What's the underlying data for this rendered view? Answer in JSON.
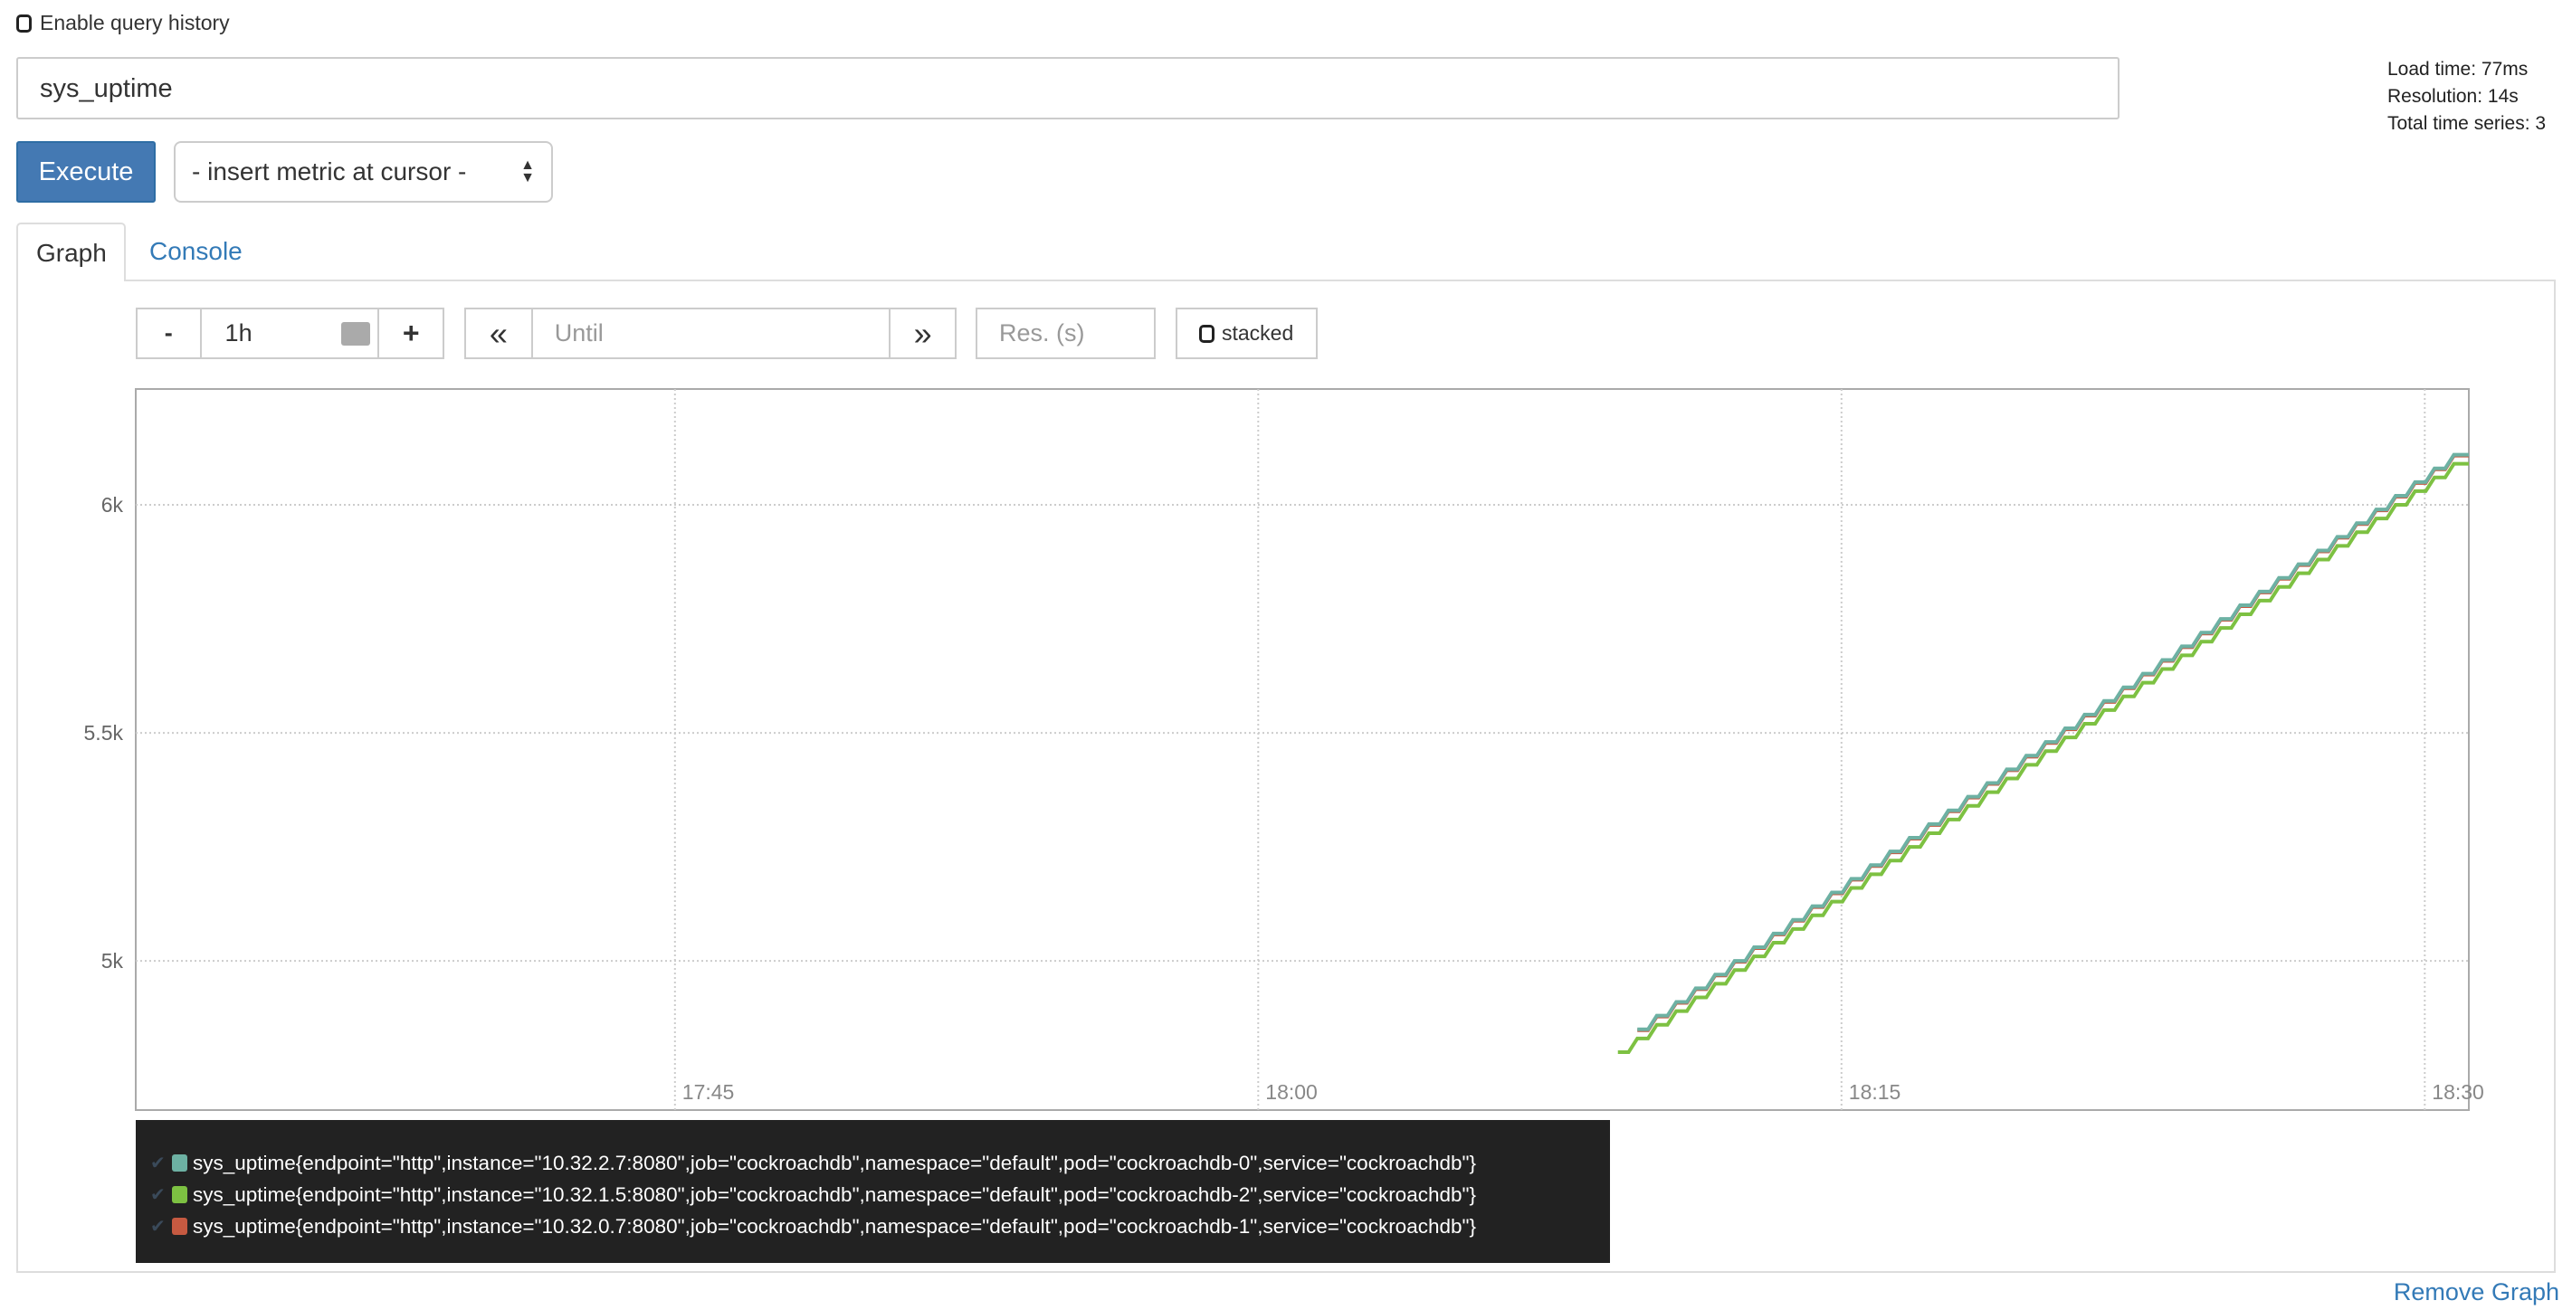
{
  "history": {
    "label": "Enable query history",
    "checked": false
  },
  "query": {
    "value": "sys_uptime"
  },
  "info": {
    "load_time": "Load time: 77ms",
    "resolution": "Resolution: 14s",
    "total_series": "Total time series: 3"
  },
  "execute_label": "Execute",
  "metric_select": {
    "selected": "- insert metric at cursor -"
  },
  "tabs": [
    {
      "label": "Graph",
      "active": true
    },
    {
      "label": "Console",
      "active": false
    }
  ],
  "controls": {
    "minus": "-",
    "range": "1h",
    "plus": "+",
    "back": "«",
    "until_placeholder": "Until",
    "forward": "»",
    "res_placeholder": "Res. (s)",
    "stacked_label": "stacked"
  },
  "remove_label": "Remove Graph",
  "chart_data": {
    "type": "line",
    "ylim": [
      4673,
      6254
    ],
    "xlim": [
      "17:31:08",
      "18:31:08"
    ],
    "yticks": [
      {
        "value": 5000,
        "label": "5k"
      },
      {
        "value": 5500,
        "label": "5.5k"
      },
      {
        "value": 6000,
        "label": "6k"
      }
    ],
    "xticks": [
      {
        "value": "17:45",
        "label": "17:45"
      },
      {
        "value": "18:00",
        "label": "18:00"
      },
      {
        "value": "18:15",
        "label": "18:15"
      },
      {
        "value": "18:30",
        "label": "18:30"
      }
    ],
    "grid": true,
    "legend_placement": "bottom",
    "x": [
      "18:09:15",
      "18:09:45",
      "18:10:15",
      "18:10:45",
      "18:11:15",
      "18:11:45",
      "18:12:15",
      "18:12:45",
      "18:13:15",
      "18:13:45",
      "18:14:15",
      "18:14:45",
      "18:15:15",
      "18:15:45",
      "18:16:15",
      "18:16:45",
      "18:17:15",
      "18:17:45",
      "18:18:15",
      "18:18:45",
      "18:19:15",
      "18:19:45",
      "18:20:15",
      "18:20:45",
      "18:21:15",
      "18:21:45",
      "18:22:15",
      "18:22:45",
      "18:23:15",
      "18:23:45",
      "18:24:15",
      "18:24:45",
      "18:25:15",
      "18:25:45",
      "18:26:15",
      "18:26:45",
      "18:27:15",
      "18:27:45",
      "18:28:15",
      "18:28:45",
      "18:29:15",
      "18:29:45",
      "18:30:15",
      "18:30:45"
    ],
    "series": [
      {
        "name": "sys_uptime{endpoint=\"http\",instance=\"10.32.2.7:8080\",job=\"cockroachdb\",namespace=\"default\",pod=\"cockroachdb-0\",service=\"cockroachdb\"}",
        "color": "#6db1a3",
        "values": [
          null,
          4850,
          4880,
          4910,
          4940,
          4970,
          5000,
          5030,
          5060,
          5090,
          5120,
          5150,
          5180,
          5210,
          5240,
          5270,
          5300,
          5330,
          5360,
          5390,
          5420,
          5450,
          5480,
          5510,
          5540,
          5570,
          5600,
          5630,
          5660,
          5690,
          5720,
          5750,
          5780,
          5810,
          5840,
          5870,
          5900,
          5930,
          5960,
          5990,
          6020,
          6050,
          6080,
          6110
        ]
      },
      {
        "name": "sys_uptime{endpoint=\"http\",instance=\"10.32.1.5:8080\",job=\"cockroachdb\",namespace=\"default\",pod=\"cockroachdb-2\",service=\"cockroachdb\"}",
        "color": "#7dc142",
        "values": [
          4800,
          4830,
          4860,
          4890,
          4920,
          4950,
          4980,
          5010,
          5040,
          5070,
          5100,
          5130,
          5160,
          5190,
          5220,
          5250,
          5280,
          5310,
          5340,
          5370,
          5400,
          5430,
          5460,
          5490,
          5520,
          5550,
          5580,
          5610,
          5640,
          5670,
          5700,
          5730,
          5760,
          5790,
          5820,
          5850,
          5880,
          5910,
          5940,
          5970,
          6000,
          6030,
          6060,
          6090
        ]
      },
      {
        "name": "sys_uptime{endpoint=\"http\",instance=\"10.32.0.7:8080\",job=\"cockroachdb\",namespace=\"default\",pod=\"cockroachdb-1\",service=\"cockroachdb\"}",
        "color": "#c65a41",
        "values": [
          null,
          4848,
          4878,
          4908,
          4938,
          4968,
          4998,
          5028,
          5058,
          5088,
          5118,
          5148,
          5178,
          5208,
          5238,
          5268,
          5298,
          5328,
          5358,
          5388,
          5418,
          5448,
          5478,
          5508,
          5538,
          5568,
          5598,
          5628,
          5658,
          5688,
          5718,
          5748,
          5778,
          5808,
          5838,
          5868,
          5898,
          5928,
          5958,
          5988,
          6018,
          6048,
          6078,
          6108
        ]
      }
    ]
  }
}
